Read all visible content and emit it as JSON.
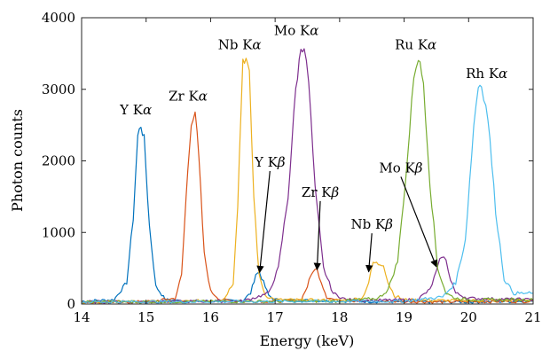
{
  "chart_data": {
    "type": "line",
    "xlabel": "Energy (keV)",
    "ylabel": "Photon counts",
    "xlim": [
      14,
      21
    ],
    "ylim": [
      0,
      4000
    ],
    "xticks": [
      14,
      15,
      16,
      17,
      18,
      19,
      20,
      21
    ],
    "yticks": [
      0,
      1000,
      2000,
      3000,
      4000
    ],
    "grid": false,
    "legend": "none",
    "series": [
      {
        "color": "#0072BD",
        "x": [
          14.0,
          14.5,
          14.7,
          14.8,
          14.87,
          14.92,
          14.97,
          15.05,
          15.15,
          15.3,
          15.6,
          16.0,
          16.5,
          16.62,
          16.7,
          16.76,
          16.82,
          16.9,
          17.0,
          17.5,
          18.0,
          19.0,
          20.0,
          21.0
        ],
        "y": [
          40,
          60,
          300,
          1200,
          2350,
          2500,
          2300,
          1100,
          250,
          60,
          40,
          40,
          50,
          150,
          420,
          440,
          300,
          120,
          60,
          50,
          40,
          30,
          30,
          40
        ]
      },
      {
        "color": "#D95319",
        "x": [
          14.0,
          15.0,
          15.45,
          15.55,
          15.62,
          15.7,
          15.76,
          15.82,
          15.9,
          16.0,
          16.15,
          16.5,
          17.0,
          17.4,
          17.5,
          17.58,
          17.65,
          17.72,
          17.8,
          17.95,
          18.5,
          19.5,
          21.0
        ],
        "y": [
          30,
          30,
          80,
          400,
          1500,
          2550,
          2700,
          2000,
          700,
          180,
          60,
          40,
          40,
          50,
          250,
          460,
          480,
          300,
          100,
          50,
          40,
          30,
          40
        ]
      },
      {
        "color": "#EDB120",
        "x": [
          14.0,
          15.5,
          16.2,
          16.35,
          16.42,
          16.5,
          16.55,
          16.6,
          16.67,
          16.75,
          16.85,
          17.0,
          18.0,
          18.35,
          18.45,
          18.52,
          18.6,
          18.68,
          18.75,
          18.85,
          19.0,
          19.5,
          21.0
        ],
        "y": [
          30,
          30,
          60,
          300,
          1400,
          3420,
          3420,
          3200,
          1500,
          400,
          120,
          60,
          50,
          80,
          300,
          580,
          560,
          560,
          300,
          120,
          60,
          50,
          50
        ]
      },
      {
        "color": "#7E2F8E",
        "x": [
          14.0,
          16.5,
          16.9,
          17.05,
          17.2,
          17.32,
          17.4,
          17.45,
          17.52,
          17.62,
          17.75,
          17.9,
          18.1,
          18.5,
          19.2,
          19.4,
          19.5,
          19.58,
          19.65,
          19.72,
          19.8,
          20.0,
          21.0
        ],
        "y": [
          30,
          40,
          150,
          500,
          1500,
          3000,
          3580,
          3600,
          3100,
          1600,
          500,
          150,
          60,
          50,
          60,
          200,
          450,
          680,
          600,
          350,
          150,
          80,
          60
        ]
      },
      {
        "color": "#77AC30",
        "x": [
          14.0,
          18.0,
          18.6,
          18.75,
          18.9,
          19.05,
          19.15,
          19.22,
          19.3,
          19.4,
          19.52,
          19.65,
          19.8,
          20.0,
          21.0
        ],
        "y": [
          30,
          40,
          80,
          200,
          600,
          2000,
          3200,
          3450,
          3100,
          1700,
          500,
          150,
          80,
          60,
          60
        ]
      },
      {
        "color": "#4DBEEE",
        "x": [
          14.0,
          19.0,
          19.6,
          19.8,
          19.95,
          20.08,
          20.15,
          20.2,
          20.3,
          20.42,
          20.55,
          20.7,
          21.0
        ],
        "y": [
          30,
          40,
          100,
          300,
          900,
          2500,
          3050,
          3070,
          2600,
          1300,
          350,
          150,
          150
        ]
      }
    ],
    "annotations": [
      {
        "base": "Y K",
        "greek": "α",
        "x": 14.84,
        "y": 2650
      },
      {
        "base": "Zr K",
        "greek": "α",
        "x": 15.65,
        "y": 2840
      },
      {
        "base": "Nb K",
        "greek": "α",
        "x": 16.45,
        "y": 3560
      },
      {
        "base": "Mo K",
        "greek": "α",
        "x": 17.33,
        "y": 3760
      },
      {
        "base": "Ru K",
        "greek": "α",
        "x": 19.18,
        "y": 3560
      },
      {
        "base": "Rh K",
        "greek": "α",
        "x": 20.28,
        "y": 3160
      },
      {
        "base": "Y K",
        "greek": "β",
        "x": 16.92,
        "y": 1920,
        "arrow_to": [
          16.76,
          440
        ]
      },
      {
        "base": "Zr K",
        "greek": "β",
        "x": 17.7,
        "y": 1500,
        "arrow_to": [
          17.65,
          480
        ]
      },
      {
        "base": "Nb K",
        "greek": "β",
        "x": 18.5,
        "y": 1050,
        "arrow_to": [
          18.45,
          450
        ]
      },
      {
        "base": "Mo K",
        "greek": "β",
        "x": 18.95,
        "y": 1840,
        "arrow_to": [
          19.5,
          520
        ]
      }
    ]
  }
}
